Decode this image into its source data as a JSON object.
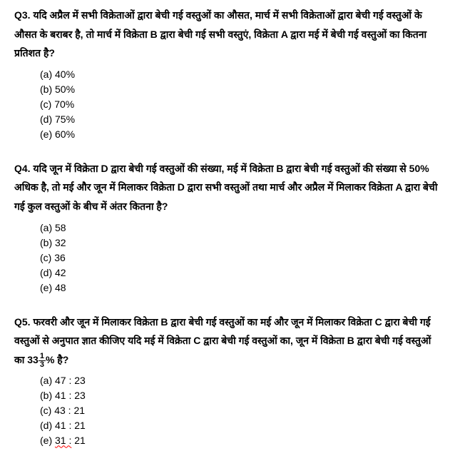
{
  "questions": [
    {
      "label": "Q3.",
      "text": "यदि अप्रैल में सभी विक्रेताओं द्वारा बेची गई वस्तुओं का औसत, मार्च में सभी विक्रेताओं द्वारा बेची गई वस्तुओं के औसत के बराबर है, तो मार्च में विक्रेता B द्वारा बेची गई सभी वस्तुएं, विक्रेता A द्वारा मई में बेची गई वस्तुओं का कितना प्रतिशत है?",
      "options": [
        "(a) 40%",
        "(b) 50%",
        "(c) 70%",
        "(d) 75%",
        "(e) 60%"
      ]
    },
    {
      "label": "Q4.",
      "text": "यदि जून में विक्रेता D द्वारा बेची गई वस्तुओं की संख्या, मई में विक्रेता B द्वारा बेची गई वस्तुओं की संख्या से 50% अधिक है, तो मई और जून में मिलाकर विक्रेता D द्वारा सभी वस्तुओं तथा मार्च और अप्रैल में मिलाकर विक्रेता A द्वारा बेची गई कुल वस्तुओं के बीच में अंतर कितना है?",
      "options": [
        "(a) 58",
        "(b) 32",
        "(c) 36",
        "(d) 42",
        "(e) 48"
      ]
    },
    {
      "label": "Q5.",
      "text_before_fraction": "फरवरी और जून में मिलाकर विक्रेता B द्वारा बेची गई वस्तुओं  का मई और जून में मिलाकर विक्रेता C द्वारा बेची गई वस्तुओं से अनुपात ज्ञात कीजिए यदि मई में विक्रेता C द्वारा बेची गई वस्तुओं का, जून में विक्रेता B द्वारा बेची गई वस्तुओं का 33",
      "fraction_num": "1",
      "fraction_den": "3",
      "text_after_fraction": "% है?",
      "options": [
        "(a) 47 : 23",
        "(b) 41 : 23",
        "(c) 43 : 21",
        "(d) 41 : 21",
        "(e) 31 : 21"
      ],
      "wavy_option_index": 4,
      "wavy_text": "31 :"
    }
  ]
}
